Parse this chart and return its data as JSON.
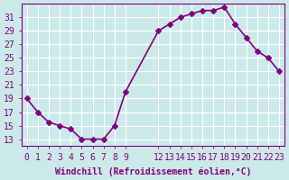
{
  "x": [
    0,
    1,
    2,
    3,
    4,
    5,
    6,
    7,
    8,
    9,
    12,
    13,
    14,
    15,
    16,
    17,
    18,
    19,
    20,
    21,
    22,
    23
  ],
  "y": [
    19,
    17,
    15.5,
    15,
    14.5,
    13,
    13,
    13,
    15,
    20,
    29,
    30,
    31,
    31.5,
    32,
    32,
    32.5,
    30,
    28,
    26,
    25,
    23
  ],
  "xlabel": "Windchill (Refroidissement éolien,°C)",
  "line_color": "#800080",
  "marker": "D",
  "bg_color": "#cce9e9",
  "grid_color": "#ffffff",
  "ylim": [
    12,
    33
  ],
  "xlim": [
    -0.5,
    23.5
  ],
  "yticks": [
    13,
    15,
    17,
    19,
    21,
    23,
    25,
    27,
    29,
    31
  ],
  "xticks": [
    0,
    1,
    2,
    3,
    4,
    5,
    6,
    7,
    8,
    9,
    12,
    13,
    14,
    15,
    16,
    17,
    18,
    19,
    20,
    21,
    22,
    23
  ],
  "xtick_labels": [
    "0",
    "1",
    "2",
    "3",
    "4",
    "5",
    "6",
    "7",
    "8",
    "9",
    "12",
    "13",
    "14",
    "15",
    "16",
    "17",
    "18",
    "19",
    "20",
    "21",
    "22",
    "23"
  ],
  "ytick_labels": [
    "13",
    "15",
    "17",
    "19",
    "21",
    "23",
    "25",
    "27",
    "29",
    "31"
  ],
  "marker_size": 3,
  "line_width": 1.2,
  "font_size": 7,
  "xlabel_font_size": 7,
  "tick_color": "#800080",
  "spine_color": "#800080"
}
